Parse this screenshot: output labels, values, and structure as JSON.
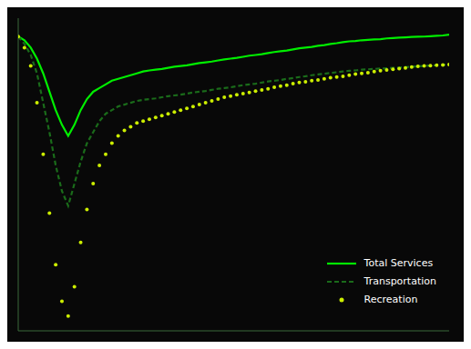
{
  "chart_data": {
    "type": "line",
    "x": [
      0,
      1,
      2,
      3,
      4,
      5,
      6,
      7,
      8,
      9,
      10,
      11,
      12,
      13,
      14,
      15,
      16,
      17,
      18,
      19,
      20,
      21,
      22,
      23,
      24,
      25,
      26,
      27,
      28,
      29,
      30,
      31,
      32,
      33,
      34,
      35,
      36,
      37,
      38,
      39,
      40,
      41,
      42,
      43,
      44,
      45,
      46,
      47,
      48,
      49,
      50,
      51,
      52,
      53,
      54,
      55,
      56,
      57,
      58,
      59,
      60,
      61,
      62,
      63,
      64,
      65,
      66,
      67,
      68,
      69
    ],
    "series": [
      {
        "name": "Total Services",
        "color": "#00ee00",
        "line_style": "solid",
        "marker": "none",
        "values": [
          0,
          -1,
          -3,
          -6,
          -10,
          -15,
          -20,
          -24,
          -27,
          -24,
          -20,
          -17,
          -15,
          -14,
          -13,
          -12,
          -11.5,
          -11,
          -10.5,
          -10,
          -9.5,
          -9.2,
          -9,
          -8.8,
          -8.5,
          -8.2,
          -8,
          -7.8,
          -7.5,
          -7.2,
          -7,
          -6.8,
          -6.5,
          -6.2,
          -6,
          -5.8,
          -5.5,
          -5.2,
          -5,
          -4.8,
          -4.5,
          -4.2,
          -4.0,
          -3.8,
          -3.5,
          -3.2,
          -3.0,
          -2.8,
          -2.5,
          -2.3,
          -2.0,
          -1.8,
          -1.5,
          -1.3,
          -1.2,
          -1.0,
          -0.9,
          -0.8,
          -0.7,
          -0.5,
          -0.4,
          -0.3,
          -0.2,
          -0.1,
          -0.05,
          0.0,
          0.1,
          0.2,
          0.3,
          0.5
        ]
      },
      {
        "name": "Transportation",
        "color": "#1a6b1a",
        "line_style": "dashed",
        "marker": "none",
        "values": [
          0,
          -2,
          -5,
          -10,
          -18,
          -26,
          -35,
          -42,
          -46,
          -40,
          -34,
          -29,
          -26,
          -23,
          -21,
          -20,
          -19,
          -18.5,
          -18,
          -17.5,
          -17.2,
          -17,
          -16.8,
          -16.5,
          -16.2,
          -16,
          -15.8,
          -15.5,
          -15.2,
          -15,
          -14.8,
          -14.5,
          -14.2,
          -14,
          -13.8,
          -13.5,
          -13.2,
          -13,
          -12.8,
          -12.5,
          -12.2,
          -12,
          -11.8,
          -11.5,
          -11.3,
          -11.0,
          -10.8,
          -10.5,
          -10.3,
          -10.1,
          -9.9,
          -9.7,
          -9.5,
          -9.3,
          -9.2,
          -9.0,
          -8.9,
          -8.8,
          -8.7,
          -8.6,
          -8.5,
          -8.4,
          -8.3,
          -8.2,
          -8.1,
          -8.0,
          -7.9,
          -7.8,
          -7.7,
          -7.6
        ]
      },
      {
        "name": "Recreation",
        "color": "#ccee00",
        "line_style": "none",
        "marker": "circle",
        "values": [
          0,
          -3,
          -8,
          -18,
          -32,
          -48,
          -62,
          -72,
          -76,
          -68,
          -56,
          -47,
          -40,
          -35,
          -32,
          -29,
          -27,
          -25.5,
          -24.5,
          -23.5,
          -23,
          -22.5,
          -22,
          -21.5,
          -21,
          -20.5,
          -20,
          -19.5,
          -19,
          -18.5,
          -18,
          -17.5,
          -17,
          -16.5,
          -16.2,
          -15.8,
          -15.5,
          -15.2,
          -14.8,
          -14.5,
          -14.2,
          -13.8,
          -13.5,
          -13.2,
          -12.8,
          -12.5,
          -12.3,
          -12.0,
          -11.8,
          -11.5,
          -11.2,
          -11.0,
          -10.8,
          -10.5,
          -10.2,
          -10.0,
          -9.8,
          -9.5,
          -9.3,
          -9.1,
          -8.9,
          -8.7,
          -8.5,
          -8.3,
          -8.1,
          -8.0,
          -7.9,
          -7.8,
          -7.7,
          -7.6
        ]
      }
    ],
    "xlim": [
      0,
      69
    ],
    "ylim": [
      -80,
      5
    ],
    "tick_labels": false,
    "grid": false,
    "legend": "lower right"
  }
}
